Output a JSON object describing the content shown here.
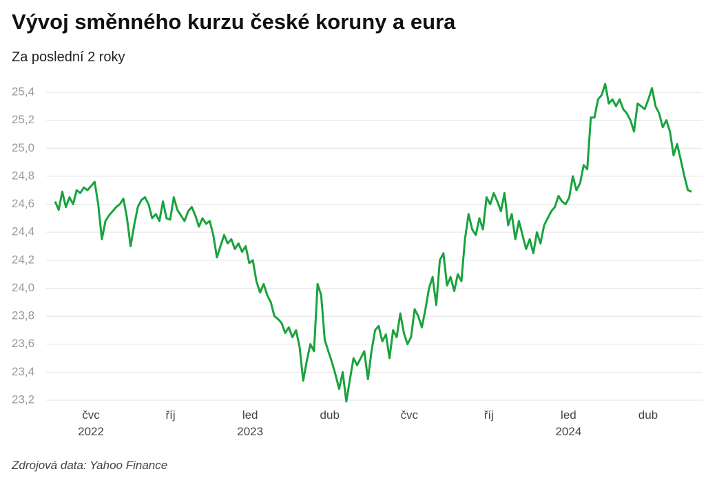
{
  "chart_data": {
    "type": "line",
    "title": "Vývoj směnného kurzu české koruny a eura",
    "subtitle": "Za poslední 2 roky",
    "source": "Zdrojová data: Yahoo Finance",
    "color": "#18a33d",
    "grid": true,
    "ylim": [
      23.2,
      25.4
    ],
    "yticks": [
      {
        "value": 23.2,
        "label": "23,2"
      },
      {
        "value": 23.4,
        "label": "23,4"
      },
      {
        "value": 23.6,
        "label": "23,6"
      },
      {
        "value": 23.8,
        "label": "23,8"
      },
      {
        "value": 24.0,
        "label": "24,0"
      },
      {
        "value": 24.2,
        "label": "24,2"
      },
      {
        "value": 24.4,
        "label": "24,4"
      },
      {
        "value": 24.6,
        "label": "24,6"
      },
      {
        "value": 24.8,
        "label": "24,8"
      },
      {
        "value": 25.0,
        "label": "25,0"
      },
      {
        "value": 25.2,
        "label": "25,2"
      },
      {
        "value": 25.4,
        "label": "25,4"
      }
    ],
    "xlim": [
      "2022-05",
      "2024-06"
    ],
    "xticks": [
      {
        "value": "2022-07",
        "label": "čvc\n2022"
      },
      {
        "value": "2022-10",
        "label": "říj"
      },
      {
        "value": "2023-01",
        "label": "led\n2023"
      },
      {
        "value": "2023-04",
        "label": "dub"
      },
      {
        "value": "2023-07",
        "label": "čvc"
      },
      {
        "value": "2023-10",
        "label": "říj"
      },
      {
        "value": "2024-01",
        "label": "led\n2024"
      },
      {
        "value": "2024-04",
        "label": "dub"
      }
    ],
    "values": [
      24.62,
      24.56,
      24.69,
      24.58,
      24.65,
      24.6,
      24.7,
      24.68,
      24.72,
      24.7,
      24.73,
      24.76,
      24.6,
      24.35,
      24.48,
      24.52,
      24.55,
      24.58,
      24.6,
      24.64,
      24.5,
      24.3,
      24.45,
      24.58,
      24.63,
      24.65,
      24.6,
      24.5,
      24.53,
      24.48,
      24.62,
      24.5,
      24.49,
      24.65,
      24.56,
      24.52,
      24.48,
      24.55,
      24.58,
      24.52,
      24.44,
      24.5,
      24.46,
      24.48,
      24.38,
      24.22,
      24.3,
      24.38,
      24.32,
      24.35,
      24.28,
      24.32,
      24.26,
      24.3,
      24.18,
      24.2,
      24.05,
      23.97,
      24.03,
      23.95,
      23.9,
      23.8,
      23.78,
      23.75,
      23.68,
      23.72,
      23.65,
      23.7,
      23.58,
      23.34,
      23.48,
      23.6,
      23.55,
      24.03,
      23.95,
      23.63,
      23.55,
      23.47,
      23.38,
      23.28,
      23.4,
      23.19,
      23.35,
      23.5,
      23.45,
      23.5,
      23.55,
      23.35,
      23.55,
      23.7,
      23.73,
      23.62,
      23.67,
      23.5,
      23.7,
      23.65,
      23.82,
      23.68,
      23.6,
      23.65,
      23.85,
      23.8,
      23.72,
      23.85,
      24.0,
      24.08,
      23.88,
      24.2,
      24.25,
      24.02,
      24.08,
      23.98,
      24.1,
      24.05,
      24.35,
      24.53,
      24.42,
      24.38,
      24.5,
      24.42,
      24.65,
      24.6,
      24.68,
      24.62,
      24.55,
      24.68,
      24.45,
      24.53,
      24.35,
      24.48,
      24.38,
      24.28,
      24.35,
      24.25,
      24.4,
      24.32,
      24.45,
      24.5,
      24.55,
      24.58,
      24.66,
      24.62,
      24.6,
      24.65,
      24.8,
      24.7,
      24.75,
      24.88,
      24.85,
      25.22,
      25.22,
      25.35,
      25.38,
      25.46,
      25.32,
      25.35,
      25.3,
      25.35,
      25.28,
      25.25,
      25.2,
      25.12,
      25.32,
      25.3,
      25.28,
      25.35,
      25.43,
      25.3,
      25.25,
      25.15,
      25.2,
      25.12,
      24.95,
      25.03,
      24.92,
      24.8,
      24.7,
      24.69
    ]
  }
}
